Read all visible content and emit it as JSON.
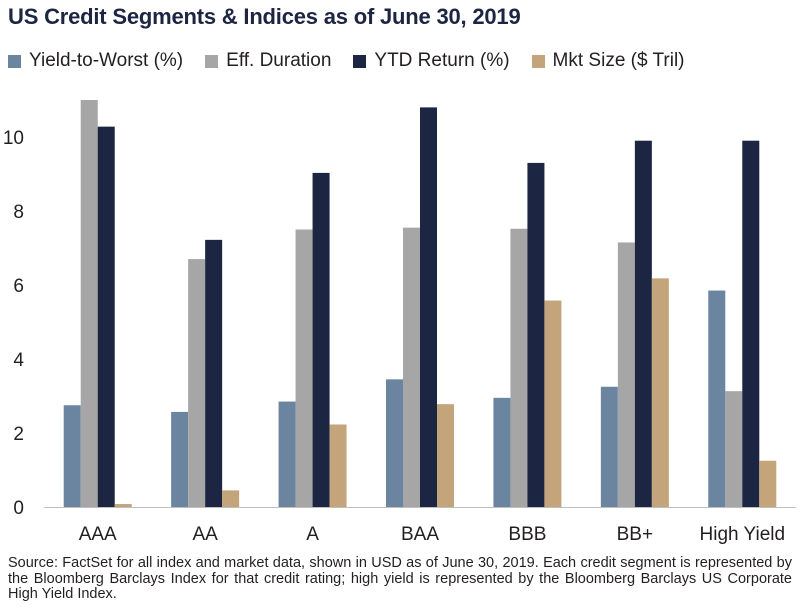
{
  "chart_data": {
    "type": "bar",
    "title": "US Credit Segments & Indices as of June 30, 2019",
    "categories": [
      "AAA",
      "AA",
      "A",
      "BAA",
      "BBB",
      "BB+",
      "High Yield"
    ],
    "series": [
      {
        "name": "Yield-to-Worst (%)",
        "color": "#6b84a0",
        "values": [
          2.75,
          2.57,
          2.85,
          3.45,
          2.95,
          3.25,
          5.85
        ]
      },
      {
        "name": "Eff. Duration",
        "color": "#a6a6a6",
        "values": [
          11.0,
          6.7,
          7.5,
          7.55,
          7.52,
          7.15,
          3.13
        ]
      },
      {
        "name": "YTD Return (%)",
        "color": "#1c2541",
        "values": [
          10.28,
          7.22,
          9.03,
          10.8,
          9.3,
          9.9,
          9.9
        ]
      },
      {
        "name": "Mkt Size ($ Tril)",
        "color": "#c4a57b",
        "values": [
          0.08,
          0.45,
          2.23,
          2.78,
          5.58,
          6.18,
          1.25
        ]
      }
    ],
    "ylim": [
      0,
      11
    ],
    "yticks": [
      0,
      2,
      4,
      6,
      8,
      10
    ],
    "ytick_labels": [
      "0",
      "2",
      "4",
      "6",
      "8",
      "10"
    ],
    "xlabel": "",
    "ylabel": "",
    "grid": false,
    "legend_position": "top"
  },
  "source_note": "Source: FactSet for all index and market data, shown in USD as of June 30, 2019. Each credit segment is represented by the Bloomberg Barclays Index for that credit rating; high yield is represented by the Bloomberg Barclays US Corporate High Yield Index."
}
